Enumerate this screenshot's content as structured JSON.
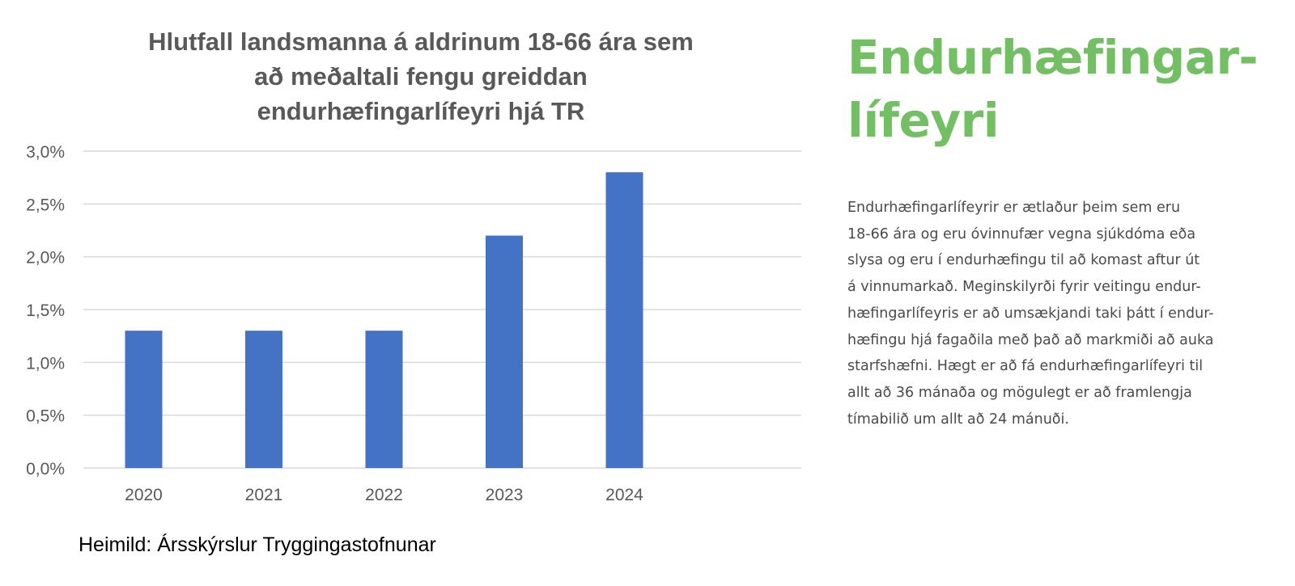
{
  "chart_data": {
    "type": "bar",
    "title_lines": [
      "Hlutfall landsmanna á aldrinum 18-66 ára sem",
      "að meðaltali fengu greiddan",
      "endurhæfingarlífeyri hjá TR"
    ],
    "categories": [
      "2020",
      "2021",
      "2022",
      "2023",
      "2024"
    ],
    "values": [
      1.3,
      1.3,
      1.3,
      2.2,
      2.8
    ],
    "unit": "%",
    "ylim": [
      0,
      3.0
    ],
    "yticks": [
      0,
      0.5,
      1.0,
      1.5,
      2.0,
      2.5,
      3.0
    ],
    "ytick_labels": [
      "0,0%",
      "0,5%",
      "1,0%",
      "1,5%",
      "2,0%",
      "2,5%",
      "3,0%"
    ],
    "xlabel": "",
    "ylabel": "",
    "grid": true,
    "bar_color": "#4472c4",
    "grid_color": "#d9d9d9"
  },
  "source_note": "Heimild: Ársskýrslur Tryggingastofnunar",
  "side_panel": {
    "heading_lines": [
      "Endurhæfingar-",
      "lífeyri"
    ],
    "heading_color": "#73bf63",
    "body_lines": [
      "Endurhæfingarlífeyrir er ætlaður þeim sem eru",
      "18-66 ára og eru óvinnufær vegna sjúkdóma eða",
      "slysa og eru í endurhæfingu til að komast aftur út",
      "á vinnumarkað. Meginskilyrði fyrir veitingu endur-",
      "hæfingarlífeyris er að umsækjandi taki þátt í endur-",
      "hæfingu hjá fagaðila með það að markmiði að auka",
      "starfshæfni. Hægt er að fá endurhæfingarlífeyri til",
      "allt að 36 mánaða og mögulegt er að framlengja",
      "tímabilið um allt að 24 mánuði."
    ]
  }
}
